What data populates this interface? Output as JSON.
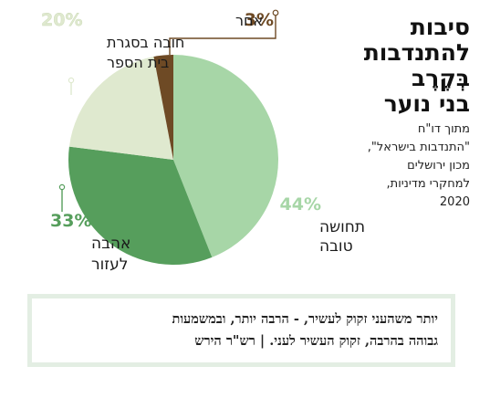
{
  "title": [
    "סיבות",
    "להתנדבות",
    "בְּקֶרֶב",
    "בני נוער"
  ],
  "source": [
    "מתוך דו\"ח",
    "\"התנדבות בישראל\",",
    "מכון ירושלים",
    "למחקרי מדיניות,",
    "2020"
  ],
  "quote": {
    "line1": "יותר משהעני זקוק לעשיר, - הרבה יותר, ובמשמעות",
    "line2": "גבוהה בהרבה, זקוק העשיר לעני.  | רש\"ר הירש"
  },
  "colors": {
    "slice_good_feeling": "#a7d6a7",
    "slice_love_helping": "#569e5c",
    "slice_school": "#dfe9cf",
    "slice_other": "#6e4a25",
    "pct_good_feeling": "#a7d6a7",
    "pct_love_helping": "#569e5c",
    "pct_school": "#dfe9cf",
    "pct_other": "#6e4a25",
    "leader": "#6e4a25",
    "quote_border": "#e3eee3"
  },
  "chart_data": {
    "type": "pie",
    "slices": [
      {
        "key": "good_feeling",
        "pct_label": "44%",
        "label_lines": [
          "תחושה",
          "טובה"
        ],
        "value": 44
      },
      {
        "key": "love_helping",
        "pct_label": "33%",
        "label_lines": [
          "אהבה",
          "לעזור"
        ],
        "value": 33
      },
      {
        "key": "school",
        "pct_label": "20%",
        "label_lines": [
          "חובה בסגרת",
          "בית הספר"
        ],
        "value": 20
      },
      {
        "key": "other",
        "pct_label": "3%",
        "label_lines": [
          "אחר"
        ],
        "value": 3
      }
    ]
  }
}
